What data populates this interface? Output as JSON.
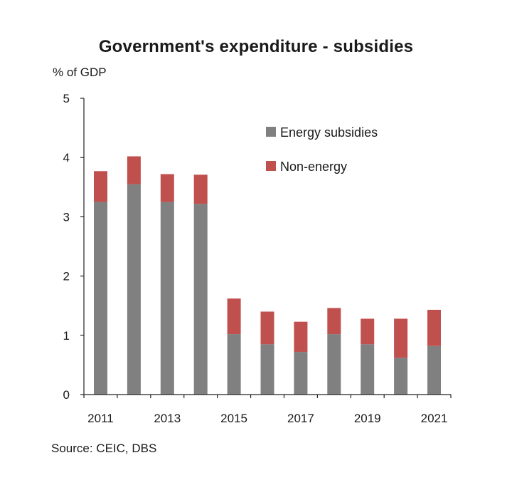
{
  "chart_data": {
    "type": "bar",
    "stacked": true,
    "title": "Government's expenditure - subsidies",
    "ylabel": "% of GDP",
    "xlabel": "",
    "ylim": [
      0,
      5
    ],
    "yticks": [
      0,
      1,
      2,
      3,
      4,
      5
    ],
    "categories": [
      "2011",
      "2012",
      "2013",
      "2014",
      "2015",
      "2016",
      "2017",
      "2018",
      "2019",
      "2020",
      "2021"
    ],
    "xtick_labels": [
      "2011",
      "2013",
      "2015",
      "2017",
      "2019",
      "2021"
    ],
    "series": [
      {
        "name": "Energy subsidies",
        "color": "#808080",
        "values": [
          3.25,
          3.55,
          3.25,
          3.22,
          1.02,
          0.85,
          0.72,
          1.02,
          0.85,
          0.62,
          0.82
        ]
      },
      {
        "name": "Non-energy",
        "color": "#c0504d",
        "values": [
          0.52,
          0.47,
          0.47,
          0.49,
          0.6,
          0.55,
          0.51,
          0.44,
          0.43,
          0.66,
          0.61
        ]
      }
    ],
    "legend_position": "top-right",
    "grid": false
  },
  "source": "Source: CEIC, DBS"
}
